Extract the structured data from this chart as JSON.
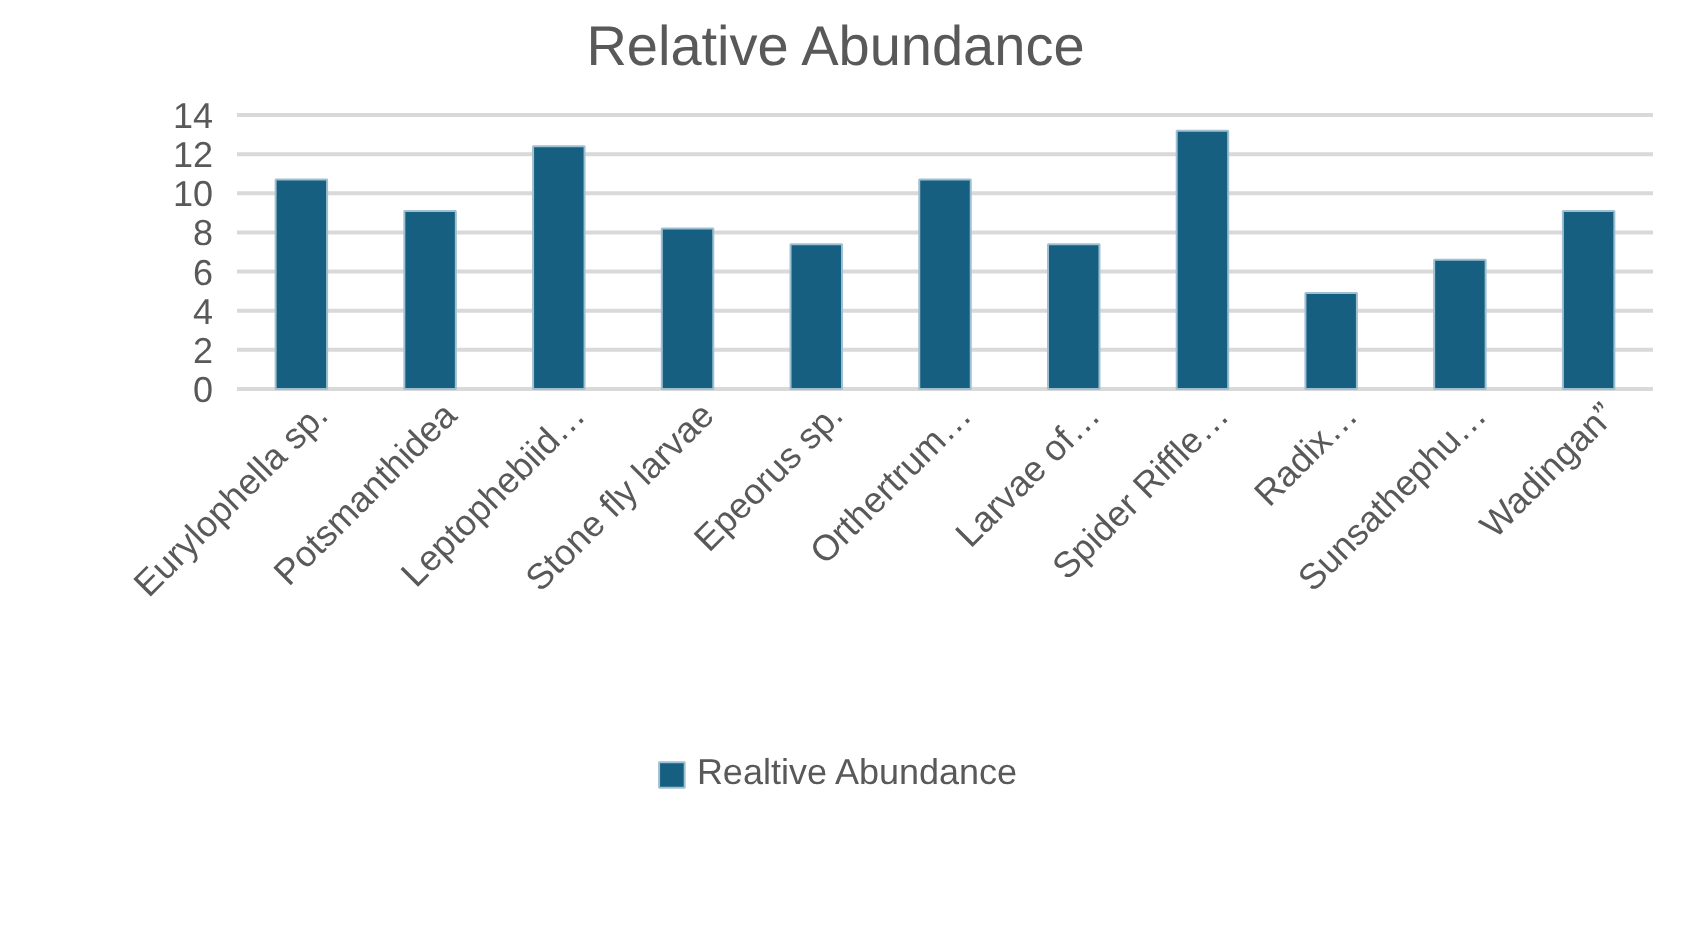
{
  "chart_data": {
    "type": "bar",
    "title": "Relative Abundance",
    "categories": [
      "Eurylophella sp.",
      "Potsmanthidea",
      "Leptophebiid…",
      "Stone fly larvae",
      "Epeorus sp.",
      "Orthertrum…",
      "Larvae of…",
      "Spider Riffle…",
      "Radix…",
      "Sunsathephu…",
      "Wadingan”"
    ],
    "series": [
      {
        "name": "Realtive Abundance",
        "color": "#175f81",
        "values": [
          10.7,
          9.1,
          12.4,
          8.2,
          7.4,
          10.7,
          7.4,
          13.2,
          4.9,
          6.6,
          9.1
        ]
      }
    ],
    "ylim": [
      0,
      14
    ],
    "yticks": [
      0,
      2,
      4,
      6,
      8,
      10,
      12,
      14
    ],
    "grid": "y",
    "legend": "bottom"
  }
}
